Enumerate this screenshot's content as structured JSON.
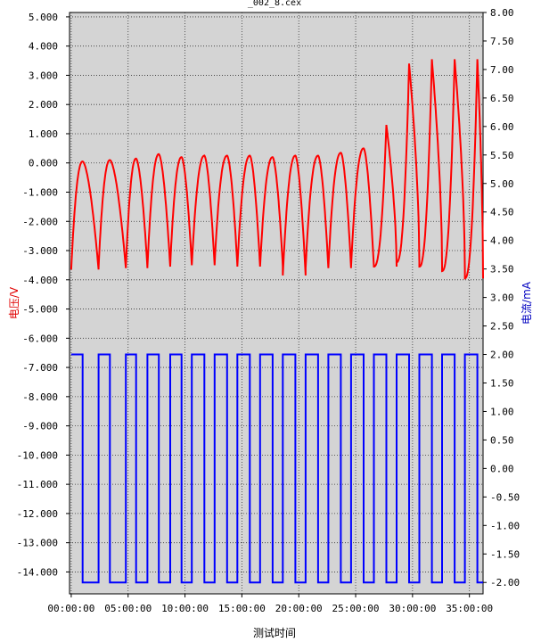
{
  "chart_data": {
    "type": "line",
    "title": "_002_8.cex",
    "xlabel": "测试时间",
    "ylabel_left": "电压/V",
    "ylabel_right": "电流/mA",
    "xlim": [
      -0.15,
      36.2
    ],
    "ylim_left": [
      -14.75,
      5.15
    ],
    "ylim_right": [
      -2.2,
      8.0
    ],
    "x_unit": "hours",
    "x_ticks": [
      {
        "value": 0,
        "label": "00:00:00"
      },
      {
        "value": 5,
        "label": "05:00:00"
      },
      {
        "value": 10,
        "label": "10:00:00"
      },
      {
        "value": 15,
        "label": "15:00:00"
      },
      {
        "value": 20,
        "label": "20:00:00"
      },
      {
        "value": 25,
        "label": "25:00:00"
      },
      {
        "value": 30,
        "label": "30:00:00"
      },
      {
        "value": 35,
        "label": "35:00:00"
      }
    ],
    "y_ticks_left": [
      "5.000",
      "4.000",
      "3.000",
      "2.000",
      "1.000",
      "0.000",
      "-1.000",
      "-2.000",
      "-3.000",
      "-4.000",
      "-5.000",
      "-6.000",
      "-7.000",
      "-8.000",
      "-9.000",
      "-10.000",
      "-11.000",
      "-12.000",
      "-13.000",
      "-14.000"
    ],
    "y_ticks_right": [
      "8.00",
      "7.50",
      "7.00",
      "6.50",
      "6.00",
      "5.50",
      "5.00",
      "4.50",
      "4.00",
      "3.50",
      "3.00",
      "2.50",
      "2.00",
      "1.50",
      "1.00",
      "0.50",
      "0.00",
      "-0.50",
      "-1.00",
      "-1.50",
      "-2.00"
    ],
    "grid": true,
    "background": "#d4d4d4",
    "series": [
      {
        "name": "电压/V",
        "axis": "left",
        "color": "#ff0000",
        "cycles": [
          {
            "start": 0.0,
            "plateau": 1.0,
            "end": 2.4,
            "min": -3.65,
            "peak": 0.05
          },
          {
            "start": 2.4,
            "plateau": 3.4,
            "end": 4.8,
            "min": -3.6,
            "peak": 0.1
          },
          {
            "start": 4.8,
            "plateau": 5.7,
            "end": 6.7,
            "min": -3.6,
            "peak": 0.15
          },
          {
            "start": 6.7,
            "plateau": 7.7,
            "end": 8.7,
            "min": -3.55,
            "peak": 0.3
          },
          {
            "start": 8.7,
            "plateau": 9.7,
            "end": 10.6,
            "min": -3.5,
            "peak": 0.2
          },
          {
            "start": 10.6,
            "plateau": 11.7,
            "end": 12.6,
            "min": -3.5,
            "peak": 0.25
          },
          {
            "start": 12.6,
            "plateau": 13.7,
            "end": 14.6,
            "min": -3.5,
            "peak": 0.25
          },
          {
            "start": 14.6,
            "plateau": 15.7,
            "end": 16.6,
            "min": -3.55,
            "peak": 0.25
          },
          {
            "start": 16.6,
            "plateau": 17.7,
            "end": 18.6,
            "min": -3.55,
            "peak": 0.2
          },
          {
            "start": 18.6,
            "plateau": 19.7,
            "end": 20.6,
            "min": -3.85,
            "peak": 0.25
          },
          {
            "start": 20.6,
            "plateau": 21.7,
            "end": 22.6,
            "min": -3.6,
            "peak": 0.25
          },
          {
            "start": 22.6,
            "plateau": 23.7,
            "end": 24.6,
            "min": -3.6,
            "peak": 0.35
          },
          {
            "start": 24.6,
            "plateau": 25.7,
            "end": 26.6,
            "min": -3.55,
            "peak": 0.5
          },
          {
            "start": 26.6,
            "plateau": 27.7,
            "end": 28.6,
            "min": -3.55,
            "peak": 1.3
          },
          {
            "start": 28.6,
            "plateau": 29.7,
            "end": 30.6,
            "min": -3.4,
            "peak": 3.4
          },
          {
            "start": 30.6,
            "plateau": 31.7,
            "end": 32.6,
            "min": -3.55,
            "peak": 3.55
          },
          {
            "start": 32.6,
            "plateau": 33.7,
            "end": 34.6,
            "min": -3.7,
            "peak": 3.55
          },
          {
            "start": 34.6,
            "plateau": 35.7,
            "end": 36.2,
            "min": -3.95,
            "peak": 3.55
          }
        ]
      },
      {
        "name": "电流/mA",
        "axis": "right",
        "color": "#0000ff",
        "square_wave": {
          "high": 2.0,
          "low": -2.0,
          "transitions": [
            0.0,
            1.0,
            2.4,
            3.4,
            4.8,
            5.7,
            6.7,
            7.7,
            8.7,
            9.7,
            10.6,
            11.7,
            12.6,
            13.7,
            14.6,
            15.7,
            16.6,
            17.7,
            18.6,
            19.7,
            20.6,
            21.7,
            22.6,
            23.7,
            24.6,
            25.7,
            26.6,
            27.7,
            28.6,
            29.7,
            30.6,
            31.7,
            32.6,
            33.7,
            34.6,
            35.7,
            36.2
          ]
        }
      }
    ]
  }
}
